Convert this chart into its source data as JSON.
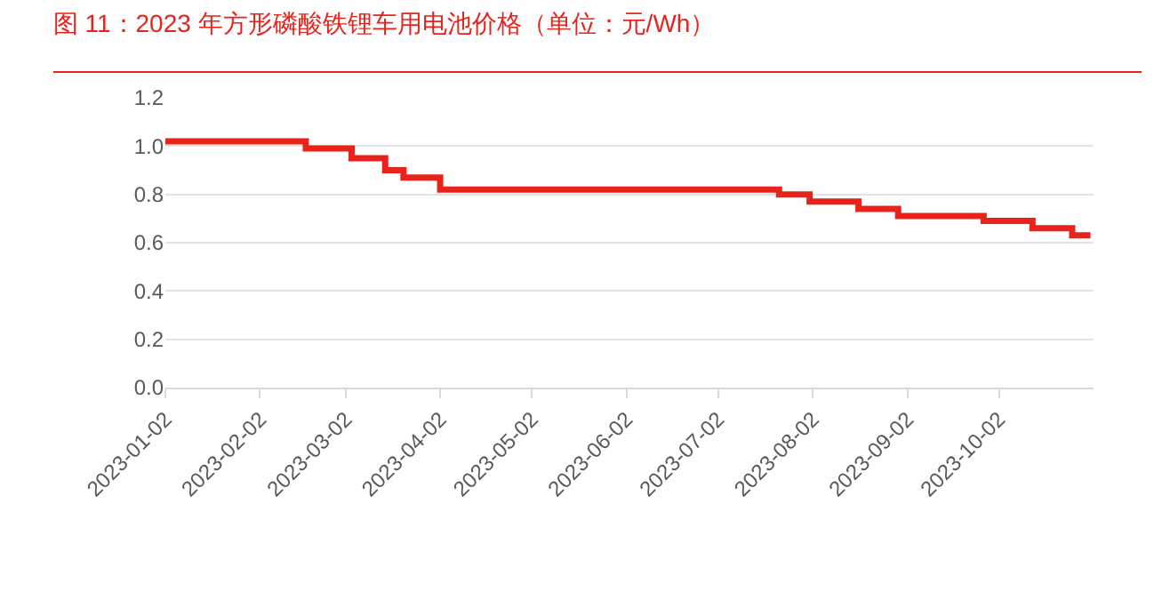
{
  "chart_data": {
    "type": "step",
    "title": "图 11：2023 年方形磷酸铁锂车用电池价格（单位：元/Wh）",
    "x": [
      "2023-01-02",
      "2023-02-17",
      "2023-03-04",
      "2023-03-15",
      "2023-03-21",
      "2023-04-02",
      "2023-07-22",
      "2023-08-01",
      "2023-08-17",
      "2023-08-30",
      "2023-09-27",
      "2023-10-13",
      "2023-10-26",
      "2023-11-01"
    ],
    "series": [
      {
        "color": "#e8231b",
        "values": [
          1.02,
          0.99,
          0.95,
          0.9,
          0.87,
          0.82,
          0.8,
          0.77,
          0.74,
          0.71,
          0.69,
          0.66,
          0.63,
          0.63
        ]
      }
    ],
    "xlim": [
      "2023-01-02",
      "2023-11-02"
    ],
    "xticks": [
      "2023-01-02",
      "2023-02-02",
      "2023-03-02",
      "2023-04-02",
      "2023-05-02",
      "2023-06-02",
      "2023-07-02",
      "2023-08-02",
      "2023-09-02",
      "2023-10-02"
    ],
    "ylim": [
      0,
      1.2
    ],
    "yticks": [
      {
        "value": 0,
        "label": "0.0"
      },
      {
        "value": 0.2,
        "label": "0.2"
      },
      {
        "value": 0.4,
        "label": "0.4"
      },
      {
        "value": 0.6,
        "label": "0.6"
      },
      {
        "value": 0.8,
        "label": "0.8"
      },
      {
        "value": 1,
        "label": "1.0"
      },
      {
        "value": 1.2,
        "label": "1.2"
      }
    ],
    "grid": "y",
    "legend": false,
    "marker": "none",
    "line_style": "solid"
  }
}
